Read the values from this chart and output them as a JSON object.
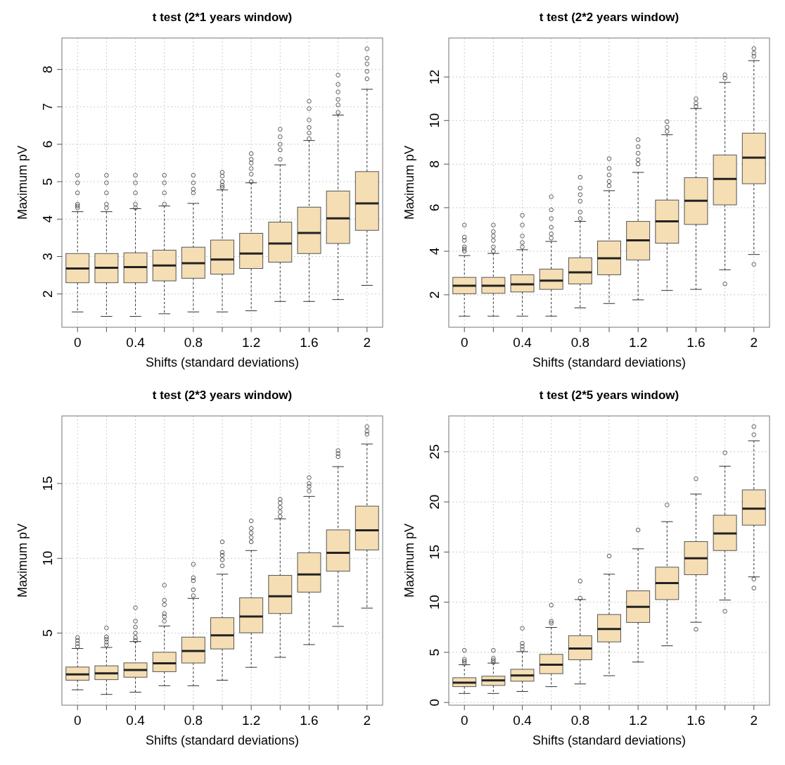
{
  "chart_data": [
    {
      "type": "box",
      "title": "t test (2*1 years window)",
      "xlabel": "Shifts (standard deviations)",
      "ylabel": "Maximum pV",
      "categories": [
        "0",
        null,
        "0.4",
        null,
        "0.8",
        null,
        "1.2",
        null,
        "1.6",
        null,
        "2"
      ],
      "ylim": [
        1.11,
        8.84
      ],
      "yticks": [
        2,
        3,
        4,
        5,
        6,
        7,
        8
      ],
      "grid": true,
      "color": "#f5deb3",
      "boxes": [
        {
          "low": 1.52,
          "q1": 2.3,
          "median": 2.68,
          "q3": 3.08,
          "high": 4.2,
          "outliers": [
            4.3,
            4.35,
            4.4,
            4.7,
            4.97,
            5.17
          ]
        },
        {
          "low": 1.4,
          "q1": 2.3,
          "median": 2.7,
          "q3": 3.08,
          "high": 4.2,
          "outliers": [
            4.3,
            4.4,
            4.7,
            4.97,
            5.17
          ]
        },
        {
          "low": 1.4,
          "q1": 2.3,
          "median": 2.72,
          "q3": 3.1,
          "high": 4.28,
          "outliers": [
            4.3,
            4.4,
            4.7,
            4.97,
            5.17
          ]
        },
        {
          "low": 1.47,
          "q1": 2.35,
          "median": 2.76,
          "q3": 3.17,
          "high": 4.35,
          "outliers": [
            4.4,
            4.7,
            4.97,
            5.17
          ]
        },
        {
          "low": 1.52,
          "q1": 2.42,
          "median": 2.82,
          "q3": 3.25,
          "high": 4.42,
          "outliers": [
            4.7,
            4.8,
            4.97,
            5.17
          ]
        },
        {
          "low": 1.52,
          "q1": 2.53,
          "median": 2.92,
          "q3": 3.44,
          "high": 4.78,
          "outliers": [
            4.85,
            4.9,
            5.0,
            5.15,
            5.25
          ]
        },
        {
          "low": 1.55,
          "q1": 2.68,
          "median": 3.08,
          "q3": 3.62,
          "high": 4.97,
          "outliers": [
            5.0,
            5.2,
            5.35,
            5.5,
            5.6,
            5.75
          ]
        },
        {
          "low": 1.8,
          "q1": 2.85,
          "median": 3.35,
          "q3": 3.92,
          "high": 5.45,
          "outliers": [
            5.6,
            5.85,
            6.0,
            6.2,
            6.4
          ]
        },
        {
          "low": 1.8,
          "q1": 3.08,
          "median": 3.63,
          "q3": 4.32,
          "high": 6.1,
          "outliers": [
            6.15,
            6.3,
            6.45,
            6.65,
            6.95,
            7.15
          ]
        },
        {
          "low": 1.85,
          "q1": 3.35,
          "median": 4.02,
          "q3": 4.75,
          "high": 6.78,
          "outliers": [
            6.85,
            7.05,
            7.2,
            7.4,
            7.6,
            7.85
          ]
        },
        {
          "low": 2.23,
          "q1": 3.7,
          "median": 4.42,
          "q3": 5.27,
          "high": 7.47,
          "outliers": [
            7.75,
            7.95,
            8.15,
            8.3,
            8.55
          ]
        }
      ]
    },
    {
      "type": "box",
      "title": "t test (2*2 years window)",
      "xlabel": "Shifts (standard deviations)",
      "ylabel": "Maximum pV",
      "categories": [
        "0",
        null,
        "0.4",
        null,
        "0.8",
        null,
        "1.2",
        null,
        "1.6",
        null,
        "2"
      ],
      "ylim": [
        0.51,
        13.79
      ],
      "yticks": [
        2,
        4,
        6,
        8,
        10,
        12
      ],
      "grid": true,
      "color": "#f5deb3",
      "boxes": [
        {
          "low": 1.02,
          "q1": 2.05,
          "median": 2.42,
          "q3": 2.8,
          "high": 3.8,
          "outliers": [
            4.0,
            4.1,
            4.2,
            4.5,
            4.65,
            5.2
          ]
        },
        {
          "low": 1.02,
          "q1": 2.07,
          "median": 2.42,
          "q3": 2.8,
          "high": 3.9,
          "outliers": [
            4.0,
            4.2,
            4.5,
            4.7,
            4.9,
            5.2
          ]
        },
        {
          "low": 1.02,
          "q1": 2.13,
          "median": 2.48,
          "q3": 2.92,
          "high": 4.07,
          "outliers": [
            4.2,
            4.4,
            4.7,
            5.2,
            5.65
          ]
        },
        {
          "low": 1.02,
          "q1": 2.25,
          "median": 2.65,
          "q3": 3.18,
          "high": 4.45,
          "outliers": [
            4.6,
            4.8,
            5.1,
            5.5,
            5.9,
            6.5
          ]
        },
        {
          "low": 1.4,
          "q1": 2.5,
          "median": 3.03,
          "q3": 3.7,
          "high": 5.37,
          "outliers": [
            5.5,
            5.8,
            6.3,
            6.6,
            6.9,
            7.4
          ]
        },
        {
          "low": 1.6,
          "q1": 2.92,
          "median": 3.68,
          "q3": 4.47,
          "high": 6.78,
          "outliers": [
            7.0,
            7.2,
            7.5,
            7.8,
            8.25
          ]
        },
        {
          "low": 1.77,
          "q1": 3.6,
          "median": 4.5,
          "q3": 5.37,
          "high": 7.62,
          "outliers": [
            8.0,
            8.2,
            8.5,
            8.8,
            9.12
          ]
        },
        {
          "low": 2.2,
          "q1": 4.37,
          "median": 5.37,
          "q3": 6.35,
          "high": 9.35,
          "outliers": [
            9.5,
            9.7,
            9.95
          ]
        },
        {
          "low": 2.25,
          "q1": 5.23,
          "median": 6.32,
          "q3": 7.38,
          "high": 10.55,
          "outliers": [
            10.65,
            10.8,
            11.0
          ]
        },
        {
          "low": 3.15,
          "q1": 6.13,
          "median": 7.32,
          "q3": 8.42,
          "high": 11.75,
          "outliers": [
            2.5,
            11.95,
            12.1
          ]
        },
        {
          "low": 3.85,
          "q1": 7.1,
          "median": 8.3,
          "q3": 9.42,
          "high": 12.75,
          "outliers": [
            3.4,
            12.95,
            13.1,
            13.3
          ]
        }
      ]
    },
    {
      "type": "box",
      "title": "t test (2*3 years window)",
      "xlabel": "Shifts (standard deviations)",
      "ylabel": "Maximum pV",
      "categories": [
        "0",
        null,
        "0.4",
        null,
        "0.8",
        null,
        "1.2",
        null,
        "1.6",
        null,
        "2"
      ],
      "ylim": [
        0.18,
        19.52
      ],
      "yticks": [
        5,
        10,
        15
      ],
      "grid": true,
      "color": "#f5deb3",
      "boxes": [
        {
          "low": 1.21,
          "q1": 1.85,
          "median": 2.24,
          "q3": 2.73,
          "high": 3.97,
          "outliers": [
            4.1,
            4.3,
            4.5,
            4.7
          ]
        },
        {
          "low": 0.9,
          "q1": 1.89,
          "median": 2.31,
          "q3": 2.81,
          "high": 4.04,
          "outliers": [
            4.2,
            4.4,
            4.6,
            4.75,
            5.35
          ]
        },
        {
          "low": 1.05,
          "q1": 2.05,
          "median": 2.53,
          "q3": 3.01,
          "high": 4.43,
          "outliers": [
            4.5,
            4.7,
            5.0,
            5.4,
            5.8,
            6.7
          ]
        },
        {
          "low": 1.48,
          "q1": 2.42,
          "median": 2.98,
          "q3": 3.72,
          "high": 5.47,
          "outliers": [
            5.8,
            6.1,
            6.3,
            6.9,
            7.2,
            8.2
          ]
        },
        {
          "low": 1.48,
          "q1": 3.0,
          "median": 3.8,
          "q3": 4.73,
          "high": 7.32,
          "outliers": [
            7.5,
            7.9,
            8.5,
            8.7,
            9.6
          ]
        },
        {
          "low": 1.85,
          "q1": 3.94,
          "median": 4.85,
          "q3": 6.03,
          "high": 8.94,
          "outliers": [
            9.5,
            9.9,
            10.2,
            10.4,
            11.1
          ]
        },
        {
          "low": 2.71,
          "q1": 5.02,
          "median": 6.11,
          "q3": 7.36,
          "high": 10.52,
          "outliers": [
            11.1,
            11.4,
            11.7,
            12.0,
            12.5
          ]
        },
        {
          "low": 3.38,
          "q1": 6.31,
          "median": 7.46,
          "q3": 8.86,
          "high": 12.64,
          "outliers": [
            12.8,
            13.1,
            13.4,
            13.7,
            13.95
          ]
        },
        {
          "low": 4.23,
          "q1": 7.74,
          "median": 8.92,
          "q3": 10.37,
          "high": 14.14,
          "outliers": [
            14.5,
            14.8,
            15.0,
            15.4
          ]
        },
        {
          "low": 5.45,
          "q1": 9.14,
          "median": 10.37,
          "q3": 11.9,
          "high": 16.13,
          "outliers": [
            16.8,
            17.0,
            17.2
          ]
        },
        {
          "low": 6.67,
          "q1": 10.56,
          "median": 11.87,
          "q3": 13.49,
          "high": 17.64,
          "outliers": [
            18.3,
            18.5,
            18.8
          ]
        }
      ]
    },
    {
      "type": "box",
      "title": "t test (2*5 years window)",
      "xlabel": "Shifts (standard deviations)",
      "ylabel": "Maximum pV",
      "categories": [
        "0",
        null,
        "0.4",
        null,
        "0.8",
        null,
        "1.2",
        null,
        "1.6",
        null,
        "2"
      ],
      "ylim": [
        -0.27,
        28.57
      ],
      "yticks": [
        0,
        5,
        10,
        15,
        20,
        25
      ],
      "grid": true,
      "color": "#f5deb3",
      "boxes": [
        {
          "low": 0.9,
          "q1": 1.58,
          "median": 1.97,
          "q3": 2.47,
          "high": 3.76,
          "outliers": [
            3.9,
            4.1,
            4.3,
            5.2
          ]
        },
        {
          "low": 0.9,
          "q1": 1.7,
          "median": 2.2,
          "q3": 2.62,
          "high": 3.93,
          "outliers": [
            4.0,
            4.2,
            4.4,
            5.2
          ]
        },
        {
          "low": 1.1,
          "q1": 2.12,
          "median": 2.69,
          "q3": 3.31,
          "high": 5.07,
          "outliers": [
            5.3,
            5.6,
            5.9,
            7.4
          ]
        },
        {
          "low": 1.58,
          "q1": 2.87,
          "median": 3.76,
          "q3": 4.8,
          "high": 7.48,
          "outliers": [
            7.9,
            8.1,
            9.7
          ]
        },
        {
          "low": 1.85,
          "q1": 4.26,
          "median": 5.37,
          "q3": 6.66,
          "high": 10.26,
          "outliers": [
            10.4,
            12.1
          ]
        },
        {
          "low": 2.67,
          "q1": 6.04,
          "median": 7.33,
          "q3": 8.77,
          "high": 12.79,
          "outliers": [
            14.6
          ]
        },
        {
          "low": 4.03,
          "q1": 7.98,
          "median": 9.54,
          "q3": 11.13,
          "high": 15.32,
          "outliers": [
            17.2
          ]
        },
        {
          "low": 5.65,
          "q1": 10.26,
          "median": 11.9,
          "q3": 13.49,
          "high": 18.03,
          "outliers": [
            19.7
          ]
        },
        {
          "low": 8.0,
          "q1": 12.74,
          "median": 14.38,
          "q3": 16.04,
          "high": 20.78,
          "outliers": [
            7.3,
            22.3
          ]
        },
        {
          "low": 10.21,
          "q1": 15.15,
          "median": 16.86,
          "q3": 18.67,
          "high": 23.56,
          "outliers": [
            9.1,
            24.9
          ]
        },
        {
          "low": 12.52,
          "q1": 17.68,
          "median": 19.32,
          "q3": 21.2,
          "high": 26.09,
          "outliers": [
            11.4,
            12.3,
            26.7,
            27.5
          ]
        }
      ]
    }
  ]
}
